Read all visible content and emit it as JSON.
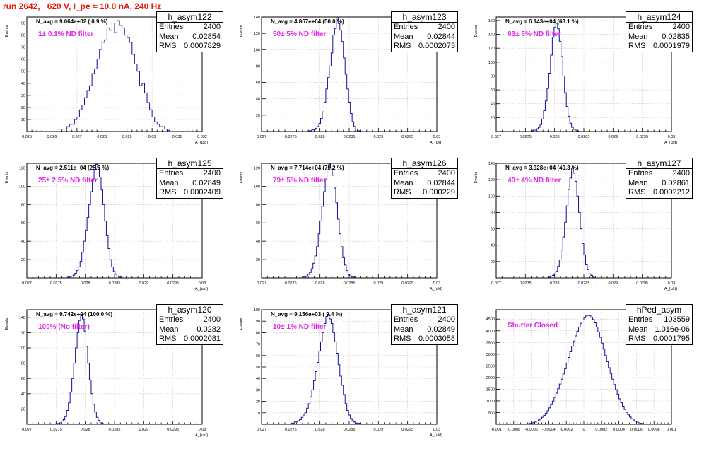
{
  "title": "run 2642,   620 V, I_pe ≈ 10.0 nA, 240 Hz",
  "colors": {
    "title": "#e8140c",
    "histogram": "#0c1296",
    "annotation": "#e326e8"
  },
  "chart_data": [
    {
      "type": "histogram",
      "name": "h_asym122",
      "navg": "N_avg = 9.064e+02 ( 0.9 %)",
      "filter": "1± 0.1% ND filter",
      "stats": {
        "entries": "2400",
        "mean": "0.02854",
        "rms": "0.0007829"
      },
      "xlabel": "A_{u/d}",
      "ylabel": "Events",
      "xlim": [
        0.025,
        0.032
      ],
      "ylim": [
        0,
        95
      ],
      "xticks": [
        0.025,
        0.026,
        0.027,
        0.028,
        0.029,
        0.03,
        0.031,
        0.032
      ],
      "xtick_labels": [
        "0.025",
        "0.026",
        "0.027",
        "0.028",
        "0.029",
        "0.03",
        "0.031",
        "0.032"
      ],
      "yticks": [
        0,
        10,
        20,
        30,
        40,
        50,
        60,
        70,
        80,
        90
      ],
      "ytick_labels": [
        "",
        "10",
        "20",
        "30",
        "40",
        "50",
        "60",
        "70",
        "80",
        "90"
      ],
      "bins": {
        "start": 0.0262,
        "width": 0.0001,
        "counts": [
          2,
          2,
          2,
          2,
          4,
          6,
          6,
          10,
          12,
          18,
          22,
          28,
          34,
          38,
          48,
          52,
          60,
          68,
          74,
          76,
          86,
          84,
          90,
          82,
          92,
          88,
          86,
          80,
          78,
          74,
          64,
          56,
          50,
          38,
          40,
          32,
          24,
          18,
          12,
          8,
          6,
          4,
          4,
          2,
          1,
          0,
          0,
          0,
          0
        ]
      }
    },
    {
      "type": "histogram",
      "name": "h_asym123",
      "navg": "N_avg = 4.867e+04 (50.0 %)",
      "filter": "50± 5% ND filter",
      "stats": {
        "entries": "2400",
        "mean": "0.02844",
        "rms": "0.0002073"
      },
      "xlabel": "A_{u/d}",
      "ylabel": "Events",
      "xlim": [
        0.027,
        0.03
      ],
      "ylim": [
        0,
        140
      ],
      "xticks": [
        0.027,
        0.0275,
        0.028,
        0.0285,
        0.029,
        0.0295,
        0.03
      ],
      "xtick_labels": [
        "0.027",
        "0.0275",
        "0.028",
        "0.0285",
        "0.029",
        "0.0295",
        "0.03"
      ],
      "yticks": [
        0,
        20,
        40,
        60,
        80,
        100,
        120,
        140
      ],
      "ytick_labels": [
        "",
        "20",
        "40",
        "60",
        "80",
        "100",
        "120",
        "140"
      ],
      "bins": {
        "start": 0.0278,
        "width": 3e-05,
        "counts": [
          1,
          1,
          2,
          2,
          4,
          6,
          10,
          16,
          24,
          36,
          52,
          66,
          80,
          96,
          118,
          126,
          140,
          132,
          124,
          110,
          90,
          70,
          52,
          36,
          22,
          12,
          6,
          3,
          1,
          1
        ]
      }
    },
    {
      "type": "histogram",
      "name": "h_asym124",
      "navg": "N_avg = 6.143e+04 (63.1 %)",
      "filter": "63± 5% ND filter",
      "stats": {
        "entries": "2400",
        "mean": "0.02835",
        "rms": "0.0001979"
      },
      "xlabel": "A_{u/d}",
      "ylabel": "Events",
      "xlim": [
        0.027,
        0.03
      ],
      "ylim": [
        0,
        165
      ],
      "xticks": [
        0.027,
        0.0275,
        0.028,
        0.0285,
        0.029,
        0.0295,
        0.03
      ],
      "xtick_labels": [
        "0.027",
        "0.0275",
        "0.028",
        "0.0285",
        "0.029",
        "0.0295",
        "0.03"
      ],
      "yticks": [
        0,
        20,
        40,
        60,
        80,
        100,
        120,
        140,
        160
      ],
      "ytick_labels": [
        "",
        "20",
        "40",
        "60",
        "80",
        "100",
        "120",
        "140",
        "160"
      ],
      "bins": {
        "start": 0.0276,
        "width": 3e-05,
        "counts": [
          1,
          2,
          2,
          4,
          6,
          10,
          18,
          30,
          44,
          62,
          84,
          110,
          136,
          150,
          156,
          148,
          130,
          108,
          80,
          56,
          36,
          22,
          12,
          6,
          3,
          2,
          1
        ]
      }
    },
    {
      "type": "histogram",
      "name": "h_asym125",
      "navg": "N_avg = 2.511e+04 (25.8 %)",
      "filter": "25± 2.5% ND filter",
      "stats": {
        "entries": "2400",
        "mean": "0.02849",
        "rms": "0.0002409"
      },
      "xlabel": "A_{u/d}",
      "ylabel": "Events",
      "xlim": [
        0.027,
        0.03
      ],
      "ylim": [
        0,
        125
      ],
      "xticks": [
        0.027,
        0.0275,
        0.028,
        0.0285,
        0.029,
        0.0295,
        0.03
      ],
      "xtick_labels": [
        "0.027",
        "0.0275",
        "0.028",
        "0.0285",
        "0.029",
        "0.0295",
        "0.03"
      ],
      "yticks": [
        0,
        20,
        40,
        60,
        80,
        100,
        120
      ],
      "ytick_labels": [
        "",
        "20",
        "40",
        "60",
        "80",
        "100",
        "120"
      ],
      "bins": {
        "start": 0.0277,
        "width": 3e-05,
        "counts": [
          1,
          1,
          2,
          3,
          5,
          8,
          12,
          18,
          28,
          40,
          52,
          66,
          80,
          94,
          108,
          118,
          124,
          120,
          110,
          96,
          80,
          62,
          46,
          32,
          20,
          12,
          7,
          4,
          2,
          1,
          1
        ]
      }
    },
    {
      "type": "histogram",
      "name": "h_asym126",
      "navg": "N_avg = 7.714e+04 (79.2 %)",
      "filter": "79± 5% ND filter",
      "stats": {
        "entries": "2400",
        "mean": "0.02844",
        "rms": "0.000229"
      },
      "xlabel": "A_{u/d}",
      "ylabel": "Events",
      "xlim": [
        0.027,
        0.03
      ],
      "ylim": [
        0,
        125
      ],
      "xticks": [
        0.027,
        0.0275,
        0.028,
        0.0285,
        0.029,
        0.0295,
        0.03
      ],
      "xtick_labels": [
        "0.027",
        "0.0275",
        "0.028",
        "0.0285",
        "0.029",
        "0.0295",
        "0.03"
      ],
      "yticks": [
        0,
        20,
        40,
        60,
        80,
        100,
        120
      ],
      "ytick_labels": [
        "",
        "20",
        "40",
        "60",
        "80",
        "100",
        "120"
      ],
      "bins": {
        "start": 0.0277,
        "width": 3e-05,
        "counts": [
          1,
          1,
          2,
          4,
          6,
          10,
          16,
          24,
          34,
          48,
          62,
          78,
          94,
          108,
          118,
          124,
          120,
          112,
          98,
          82,
          64,
          48,
          34,
          22,
          14,
          8,
          4,
          2,
          1,
          1
        ]
      }
    },
    {
      "type": "histogram",
      "name": "h_asym127",
      "navg": "N_avg = 3.928e+04 (40.3 %)",
      "filter": "40± 4% ND filter",
      "stats": {
        "entries": "2400",
        "mean": "0.02861",
        "rms": "0.0002212"
      },
      "xlabel": "A_{u/d}",
      "ylabel": "Events",
      "xlim": [
        0.027,
        0.03
      ],
      "ylim": [
        0,
        140
      ],
      "xticks": [
        0.027,
        0.0275,
        0.028,
        0.0285,
        0.029,
        0.0295,
        0.03
      ],
      "xtick_labels": [
        "0.027",
        "0.0275",
        "0.028",
        "0.0285",
        "0.029",
        "0.0295",
        "0.03"
      ],
      "yticks": [
        0,
        20,
        40,
        60,
        80,
        100,
        120,
        140
      ],
      "ytick_labels": [
        "",
        "20",
        "40",
        "60",
        "80",
        "100",
        "120",
        "140"
      ],
      "bins": {
        "start": 0.0279,
        "width": 3e-05,
        "counts": [
          1,
          2,
          3,
          5,
          8,
          14,
          22,
          34,
          50,
          68,
          88,
          108,
          122,
          134,
          128,
          118,
          100,
          80,
          60,
          42,
          28,
          16,
          10,
          5,
          3,
          1
        ]
      }
    },
    {
      "type": "histogram",
      "name": "h_asym120",
      "navg": "N_avg = 9.742e+04 (100.0 %)",
      "filter": "100% (No filter)",
      "stats": {
        "entries": "2400",
        "mean": "0.0282",
        "rms": "0.0002081"
      },
      "xlabel": "A_{u/d}",
      "ylabel": "Events",
      "xlim": [
        0.027,
        0.03
      ],
      "ylim": [
        0,
        150
      ],
      "xticks": [
        0.027,
        0.0275,
        0.028,
        0.0285,
        0.029,
        0.0295,
        0.03
      ],
      "xtick_labels": [
        "0.027",
        "0.0275",
        "0.028",
        "0.0285",
        "0.029",
        "0.0295",
        "0.03"
      ],
      "yticks": [
        0,
        20,
        40,
        60,
        80,
        100,
        120,
        140
      ],
      "ytick_labels": [
        "",
        "20",
        "40",
        "60",
        "80",
        "100",
        "120",
        "140"
      ],
      "bins": {
        "start": 0.0275,
        "width": 3e-05,
        "counts": [
          1,
          1,
          2,
          4,
          6,
          10,
          18,
          28,
          42,
          60,
          80,
          100,
          120,
          136,
          144,
          138,
          122,
          102,
          80,
          58,
          40,
          26,
          16,
          9,
          5,
          2,
          1
        ]
      }
    },
    {
      "type": "histogram",
      "name": "h_asym121",
      "navg": "N_avg = 9.156e+03 ( 9.4 %)",
      "filter": "10± 1% ND filter",
      "stats": {
        "entries": "2400",
        "mean": "0.02849",
        "rms": "0.0003058"
      },
      "xlabel": "A_{u/d}",
      "ylabel": "Events",
      "xlim": [
        0.027,
        0.03
      ],
      "ylim": [
        0,
        100
      ],
      "xticks": [
        0.027,
        0.0275,
        0.028,
        0.0285,
        0.029,
        0.0295,
        0.03
      ],
      "xtick_labels": [
        "0.027",
        "0.0275",
        "0.028",
        "0.0285",
        "0.029",
        "0.0295",
        "0.03"
      ],
      "yticks": [
        0,
        10,
        20,
        30,
        40,
        50,
        60,
        70,
        80,
        90,
        100
      ],
      "ytick_labels": [
        "",
        "10",
        "20",
        "30",
        "40",
        "50",
        "60",
        "70",
        "80",
        "90",
        "100"
      ],
      "bins": {
        "start": 0.0275,
        "width": 3e-05,
        "counts": [
          1,
          1,
          2,
          2,
          3,
          4,
          6,
          8,
          10,
          14,
          18,
          24,
          30,
          38,
          46,
          54,
          64,
          72,
          80,
          88,
          94,
          96,
          92,
          88,
          80,
          72,
          62,
          52,
          42,
          34,
          26,
          18,
          12,
          8,
          5,
          3,
          2,
          1,
          1,
          1
        ]
      }
    },
    {
      "type": "histogram",
      "name": "hPed_asym",
      "navg": "",
      "filter": "Shutter Closed",
      "stats": {
        "entries": "103559",
        "mean": "1.016e-06",
        "rms": "0.0001795"
      },
      "xlabel": "",
      "ylabel": "",
      "xlim": [
        -0.001,
        0.001
      ],
      "ylim": [
        0,
        4900
      ],
      "xticks": [
        -0.001,
        -0.0008,
        -0.0006,
        -0.0004,
        -0.0002,
        0,
        0.0002,
        0.0004,
        0.0006,
        0.0008,
        0.001
      ],
      "xtick_labels": [
        "-0.001",
        "-0.0008",
        "-0.0006",
        "-0.0004",
        "-0.0002",
        "0",
        "0.0002",
        "0.0004",
        "0.0006",
        "0.0008",
        "0.001"
      ],
      "yticks": [
        0,
        500,
        1000,
        1500,
        2000,
        2500,
        3000,
        3500,
        4000,
        4500
      ],
      "ytick_labels": [
        "",
        "500",
        "1000",
        "1500",
        "2000",
        "2500",
        "3000",
        "3500",
        "4000",
        "4500"
      ],
      "bins": {
        "start": -0.00072,
        "width": 2e-05,
        "counts": [
          4,
          6,
          10,
          16,
          24,
          36,
          52,
          72,
          100,
          136,
          180,
          236,
          300,
          380,
          470,
          580,
          700,
          840,
          990,
          1150,
          1330,
          1520,
          1720,
          1930,
          2150,
          2380,
          2620,
          2860,
          3100,
          3340,
          3560,
          3780,
          3980,
          4160,
          4320,
          4460,
          4560,
          4630,
          4660,
          4640,
          4580,
          4480,
          4340,
          4160,
          3950,
          3720,
          3470,
          3210,
          2940,
          2680,
          2420,
          2170,
          1930,
          1700,
          1480,
          1280,
          1090,
          920,
          770,
          630,
          510,
          400,
          310,
          240,
          180,
          130,
          90,
          60,
          40,
          26,
          16,
          10,
          6,
          4
        ]
      }
    }
  ]
}
